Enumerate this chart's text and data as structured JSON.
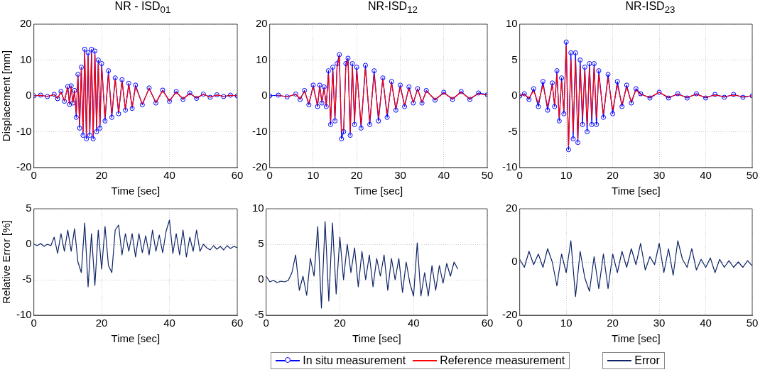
{
  "chart_data": [
    {
      "type": "line",
      "title": "NR - ISD$_{01}$",
      "xlabel": "Time [sec]",
      "ylabel": "Displacement [mm]",
      "xlim": [
        0,
        60
      ],
      "xticks": [
        0,
        20,
        40,
        60
      ],
      "ylim": [
        -20,
        20
      ],
      "yticks": [
        -20,
        -10,
        0,
        10,
        20
      ],
      "grid": true,
      "legend": "bottom",
      "line_style": "solid",
      "series": [
        {
          "name": "In situ measurement",
          "color": "#0000ff",
          "marker": "circle",
          "x": [
            0,
            2,
            4,
            6,
            7,
            8,
            9,
            10,
            10.5,
            11,
            11.5,
            12,
            12.5,
            13,
            13.5,
            14,
            14.5,
            15,
            15.5,
            16,
            16.5,
            17,
            17.5,
            18,
            18.5,
            19,
            19.5,
            20,
            21,
            22,
            23,
            24,
            25,
            26,
            27,
            28,
            29,
            30,
            32,
            34,
            36,
            38,
            40,
            42,
            44,
            46,
            48,
            50,
            52,
            54,
            56,
            58,
            60
          ],
          "values": [
            0,
            0.2,
            -0.2,
            0.4,
            -0.8,
            1.2,
            -1.5,
            2.6,
            -2.4,
            2.8,
            -2,
            1.5,
            -6,
            6,
            -9,
            8,
            -11,
            13,
            -12,
            12,
            -11,
            13,
            -12,
            12.5,
            -10,
            10,
            -9,
            9,
            -7,
            7,
            -6,
            5,
            -5,
            4.5,
            -4,
            3.5,
            -3.5,
            3,
            -2.5,
            2.2,
            -2,
            1.6,
            -1.5,
            1.2,
            -1,
            0.8,
            -0.7,
            0.5,
            -0.4,
            0.3,
            -0.2,
            0.2,
            0
          ]
        },
        {
          "name": "Reference measurement",
          "color": "#ff0000",
          "marker": "none",
          "x": [
            0,
            2,
            4,
            6,
            7,
            8,
            9,
            10,
            10.5,
            11,
            11.5,
            12,
            12.5,
            13,
            13.5,
            14,
            14.5,
            15,
            15.5,
            16,
            16.5,
            17,
            17.5,
            18,
            18.5,
            19,
            19.5,
            20,
            21,
            22,
            23,
            24,
            25,
            26,
            27,
            28,
            29,
            30,
            32,
            34,
            36,
            38,
            40,
            42,
            44,
            46,
            48,
            50,
            52,
            54,
            56,
            58,
            60
          ],
          "values": [
            0,
            0.1,
            -0.1,
            0.3,
            -0.6,
            1,
            -1.3,
            2.3,
            -2.1,
            2.5,
            -1.8,
            1.2,
            -5,
            5.5,
            -8,
            7.5,
            -10,
            12,
            -11,
            11,
            -10,
            12,
            -11,
            11.5,
            -9,
            9,
            -8,
            8,
            -6,
            6,
            -5,
            4.5,
            -4.5,
            4,
            -3.5,
            3,
            -3,
            2.5,
            -2.2,
            2,
            -1.8,
            1.4,
            -1.3,
            1,
            -0.8,
            0.6,
            -0.5,
            0.4,
            -0.3,
            0.2,
            -0.1,
            0.1,
            0
          ]
        }
      ]
    },
    {
      "type": "line",
      "title": "NR-ISD$_{12}$",
      "xlabel": "Time [sec]",
      "xlim": [
        0,
        50
      ],
      "xticks": [
        0,
        10,
        20,
        30,
        40,
        50
      ],
      "ylim": [
        -20,
        20
      ],
      "yticks": [
        -20,
        -10,
        0,
        10,
        20
      ],
      "grid": true,
      "line_style": "solid",
      "series": [
        {
          "color": "#0000ff",
          "marker": "circle",
          "x": [
            0,
            2,
            4,
            6,
            7,
            8,
            9,
            10,
            11,
            11.5,
            12,
            12.5,
            13,
            13.5,
            14,
            14.5,
            15,
            15.5,
            16,
            16.5,
            17,
            17.5,
            18,
            18.5,
            19,
            19.5,
            20,
            21,
            22,
            23,
            24,
            25,
            26,
            27,
            28,
            29,
            30,
            31,
            32,
            33,
            34,
            35,
            36,
            38,
            40,
            42,
            44,
            46,
            48,
            50
          ],
          "values": [
            0,
            0.2,
            -0.3,
            0.5,
            -1,
            1.5,
            -2.5,
            3,
            -3,
            3,
            -2,
            2.5,
            -3,
            7,
            -8,
            8,
            -7,
            9,
            11.5,
            -12,
            -10,
            9,
            10.5,
            -11,
            9,
            -8,
            8,
            -9,
            8.5,
            -8,
            7,
            -7,
            5,
            -6,
            4,
            -4,
            3,
            -3,
            2.5,
            -2,
            2,
            -2,
            1.5,
            -1.2,
            1,
            -1,
            1.2,
            -1,
            0.8,
            0.3
          ]
        },
        {
          "color": "#ff0000",
          "marker": "none",
          "x": [
            2,
            4,
            6,
            7,
            8,
            9,
            10,
            11,
            11.5,
            12,
            12.5,
            13,
            13.5,
            14,
            14.5,
            15,
            15.5,
            16,
            16.5,
            17,
            17.5,
            18,
            18.5,
            19,
            19.5,
            20,
            21,
            22,
            23,
            24,
            25,
            26,
            27,
            28,
            29,
            30,
            31,
            32,
            33,
            34,
            35,
            36,
            38,
            40,
            42,
            44,
            46,
            48,
            50
          ],
          "values": [
            0.1,
            -0.2,
            0.4,
            -0.8,
            1.2,
            -2,
            2.5,
            -2.5,
            2.5,
            -1.5,
            2,
            -2.5,
            6,
            -7,
            7,
            -6,
            8,
            11,
            -10,
            -9,
            8,
            10,
            -10,
            8,
            -7,
            7,
            -8,
            7.5,
            -7,
            6,
            -6,
            4.5,
            -5,
            3.5,
            -3.5,
            2.5,
            -2.5,
            2,
            -1.8,
            1.8,
            -1.7,
            1.3,
            -1,
            0.8,
            -0.8,
            1,
            -0.8,
            0.6,
            0.2
          ]
        }
      ]
    },
    {
      "type": "line",
      "title": "NR-ISD$_{23}$",
      "xlabel": "Time [sec]",
      "xlim": [
        0,
        50
      ],
      "xticks": [
        0,
        10,
        20,
        30,
        40,
        50
      ],
      "ylim": [
        -10,
        10
      ],
      "yticks": [
        -10,
        -5,
        0,
        5,
        10
      ],
      "grid": true,
      "line_style": "solid",
      "series": [
        {
          "color": "#0000ff",
          "marker": "circle",
          "x": [
            0,
            1,
            2,
            3,
            4,
            5,
            6,
            7,
            7.5,
            8,
            8.5,
            9,
            9.5,
            10,
            10.5,
            11,
            11.5,
            12,
            12.5,
            13,
            13.5,
            14,
            14.5,
            15,
            15.5,
            16,
            16.5,
            17,
            18,
            19,
            20,
            21,
            22,
            23,
            24,
            25,
            26,
            28,
            30,
            32,
            34,
            36,
            38,
            40,
            42,
            44,
            46,
            48,
            50
          ],
          "values": [
            0,
            0.3,
            -0.5,
            1,
            -1.5,
            2,
            -2,
            1.8,
            -1.5,
            3.5,
            -3.5,
            2.5,
            -2.5,
            7.5,
            -7.5,
            6,
            -6,
            6,
            -6.5,
            5,
            -4,
            4,
            -5,
            4.5,
            -4,
            4.5,
            -4,
            3.5,
            -3,
            3,
            -2.5,
            2,
            -1.5,
            1.5,
            -1,
            1,
            0.3,
            -0.3,
            0.5,
            -0.3,
            0.3,
            -0.3,
            0.3,
            -0.3,
            0.2,
            -0.2,
            0.2,
            -0.2,
            0
          ]
        },
        {
          "color": "#ff0000",
          "marker": "none",
          "x": [
            0,
            1,
            2,
            3,
            4,
            5,
            6,
            7,
            7.5,
            8,
            8.5,
            9,
            9.5,
            10,
            10.5,
            11,
            11.5,
            12,
            12.5,
            13,
            13.5,
            14,
            14.5,
            15,
            15.5,
            16,
            16.5,
            17,
            18,
            19,
            20,
            21,
            22,
            23,
            24,
            25,
            26,
            28,
            30,
            32,
            34,
            36,
            38,
            40,
            42,
            44,
            46,
            48,
            50
          ],
          "values": [
            0,
            0.2,
            -0.3,
            0.7,
            -1,
            1.5,
            -1.5,
            1.5,
            -1.2,
            3,
            -3,
            2,
            -2,
            7,
            -7,
            5,
            -5,
            5,
            -6,
            4,
            -3,
            3.5,
            -4,
            4,
            -3,
            4,
            -3,
            3,
            -2.5,
            2.5,
            -2,
            1.5,
            -1.2,
            1.2,
            -0.8,
            0.8,
            0.2,
            -0.2,
            0.5,
            -0.2,
            0.2,
            -0.2,
            0.2,
            -0.2,
            0.1,
            -0.1,
            0.1,
            -0.1,
            0
          ]
        }
      ]
    },
    {
      "type": "line",
      "xlabel": "Time [sec]",
      "ylabel": "Relative Error [%]",
      "xlim": [
        0,
        60
      ],
      "xticks": [
        0,
        20,
        40,
        60
      ],
      "ylim": [
        -10,
        5
      ],
      "yticks": [
        -10,
        -5,
        0,
        5
      ],
      "grid": true,
      "legend": "bottom",
      "line_style": "solid",
      "series": [
        {
          "name": "Error",
          "color": "#0d2466",
          "marker": "none",
          "x": [
            0,
            1,
            2,
            3,
            4,
            5,
            6,
            7,
            8,
            9,
            10,
            11,
            12,
            13,
            14,
            15,
            16,
            17,
            18,
            19,
            20,
            21,
            22,
            23,
            24,
            25,
            26,
            27,
            28,
            29,
            30,
            31,
            32,
            33,
            34,
            35,
            36,
            37,
            38,
            39,
            40,
            41,
            42,
            43,
            44,
            45,
            46,
            47,
            48,
            49,
            50,
            51,
            52,
            53,
            54,
            55,
            56,
            57,
            58,
            59,
            60
          ],
          "values": [
            0,
            -0.2,
            0.1,
            -0.3,
            0,
            -0.2,
            1,
            -1.3,
            1.5,
            -1,
            2,
            -1,
            2.2,
            -2.5,
            -4,
            3,
            -6,
            1.5,
            -5.8,
            2,
            -3.5,
            2.5,
            -3,
            -4,
            2,
            2.7,
            -1.5,
            1.5,
            -1,
            1.5,
            -1.8,
            1.5,
            -1.2,
            1.2,
            -1.5,
            2,
            -1,
            1.3,
            -1.2,
            1.8,
            3.4,
            -1.3,
            1.5,
            -1.5,
            2,
            -1.8,
            1,
            -1,
            2,
            -1,
            0,
            -0.5,
            -0.8,
            -0.2,
            -0.7,
            -0.3,
            -0.8,
            -0.2,
            -0.6,
            -0.3,
            -0.5
          ]
        }
      ]
    },
    {
      "type": "line",
      "xlabel": "Time [sec]",
      "xlim": [
        0,
        60
      ],
      "xticks": [
        0,
        20,
        40,
        60
      ],
      "ylim": [
        -5,
        10
      ],
      "yticks": [
        -5,
        0,
        5,
        10
      ],
      "grid": true,
      "line_style": "solid",
      "series": [
        {
          "color": "#0d2466",
          "marker": "none",
          "x": [
            0,
            1,
            2,
            3,
            4,
            5,
            6,
            7,
            8,
            9,
            10,
            11,
            12,
            13,
            14,
            15,
            16,
            17,
            18,
            19,
            20,
            21,
            22,
            23,
            24,
            25,
            26,
            27,
            28,
            29,
            30,
            31,
            32,
            33,
            34,
            35,
            36,
            37,
            38,
            39,
            40,
            41,
            42,
            43,
            44,
            45,
            46,
            47,
            48,
            49,
            50,
            51,
            52
          ],
          "values": [
            0.5,
            -0.3,
            -0.1,
            -0.4,
            -0.2,
            -0.3,
            -0.1,
            1,
            3.5,
            -1.5,
            0.5,
            -2.2,
            3,
            0.5,
            7.5,
            -4,
            8.2,
            -3,
            8,
            -2,
            6,
            0,
            5,
            1,
            4.5,
            -1,
            4,
            0,
            3.5,
            -1,
            3,
            0.5,
            3.5,
            -1.5,
            3,
            0,
            3,
            -1.8,
            2.5,
            -0.5,
            -2.3,
            5.2,
            -2.3,
            1,
            -2.3,
            2,
            -1.5,
            2,
            -0.5,
            2.3,
            0.5,
            2.5,
            1.5
          ]
        }
      ]
    },
    {
      "type": "line",
      "xlabel": "Time [sec]",
      "xlim": [
        0,
        50
      ],
      "xticks": [
        0,
        10,
        20,
        30,
        40,
        50
      ],
      "ylim": [
        -20,
        20
      ],
      "yticks": [
        -20,
        0,
        20
      ],
      "grid": true,
      "line_style": "solid",
      "series": [
        {
          "color": "#0d2466",
          "marker": "none",
          "x": [
            0,
            1,
            2,
            3,
            4,
            5,
            6,
            7,
            8,
            9,
            10,
            11,
            12,
            13,
            14,
            15,
            16,
            17,
            18,
            19,
            20,
            21,
            22,
            23,
            24,
            25,
            26,
            27,
            28,
            29,
            30,
            31,
            32,
            33,
            34,
            35,
            36,
            37,
            38,
            39,
            40,
            41,
            42,
            43,
            44,
            45,
            46,
            47,
            48,
            49,
            50
          ],
          "values": [
            1,
            -2,
            4,
            -1,
            3,
            -2,
            5,
            0,
            -9,
            3,
            -4,
            8,
            -13,
            4,
            -6,
            -11,
            2,
            -10,
            3,
            -10,
            3,
            -4,
            4,
            -2,
            5,
            -1,
            7,
            -3,
            2,
            -1,
            7,
            -4,
            5,
            -5,
            8,
            1,
            -2,
            5,
            -3,
            1,
            -2,
            1.5,
            -4,
            1,
            -2,
            0.5,
            -2,
            0,
            -2,
            0.5,
            -1.5
          ]
        }
      ]
    }
  ]
}
